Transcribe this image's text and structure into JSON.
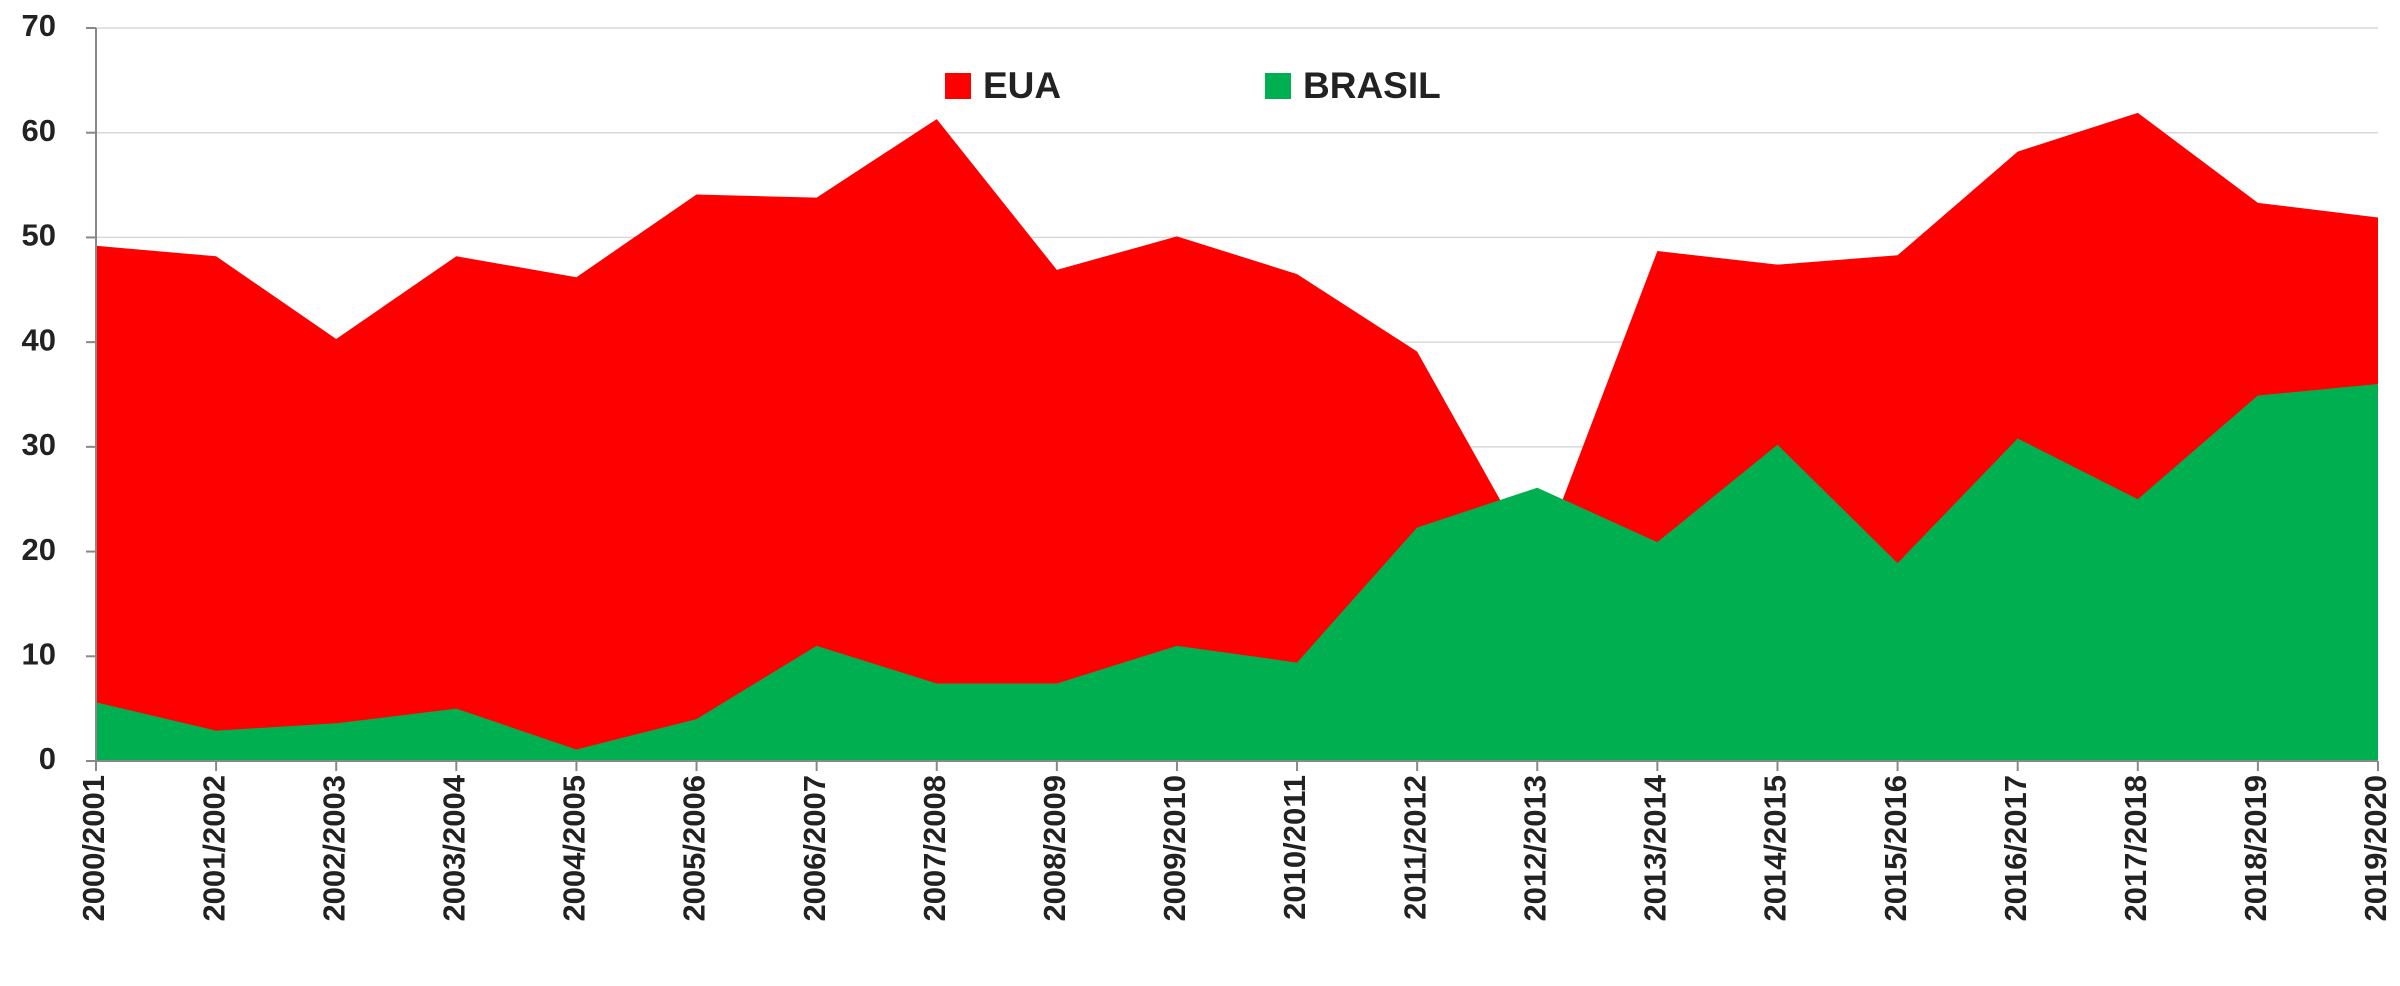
{
  "chart_data": {
    "type": "area",
    "categories": [
      "2000/2001",
      "2001/2002",
      "2002/2003",
      "2003/2004",
      "2004/2005",
      "2005/2006",
      "2006/2007",
      "2007/2008",
      "2008/2009",
      "2009/2010",
      "2010/2011",
      "2011/2012",
      "2012/2013",
      "2013/2014",
      "2014/2015",
      "2015/2016",
      "2016/2017",
      "2017/2018",
      "2018/2019",
      "2019/2020"
    ],
    "series": [
      {
        "name": "EUA",
        "color": "#ff0000",
        "values": [
          49.2,
          48.2,
          40.3,
          48.2,
          46.2,
          54.1,
          53.8,
          61.3,
          46.9,
          50.1,
          46.5,
          39.1,
          18.6,
          48.7,
          47.4,
          48.3,
          58.2,
          61.9,
          53.3,
          51.9
        ]
      },
      {
        "name": "BRASIL",
        "color": "#00b050",
        "values": [
          5.6,
          2.9,
          3.6,
          5.0,
          1.1,
          4.0,
          11.0,
          7.4,
          7.4,
          11.0,
          9.4,
          22.3,
          26.1,
          20.9,
          30.2,
          18.9,
          30.8,
          25.0,
          34.9,
          36.0
        ]
      }
    ],
    "ylim": [
      0,
      70
    ],
    "yticks": [
      0,
      10,
      20,
      30,
      40,
      50,
      60,
      70
    ],
    "grid": true
  }
}
